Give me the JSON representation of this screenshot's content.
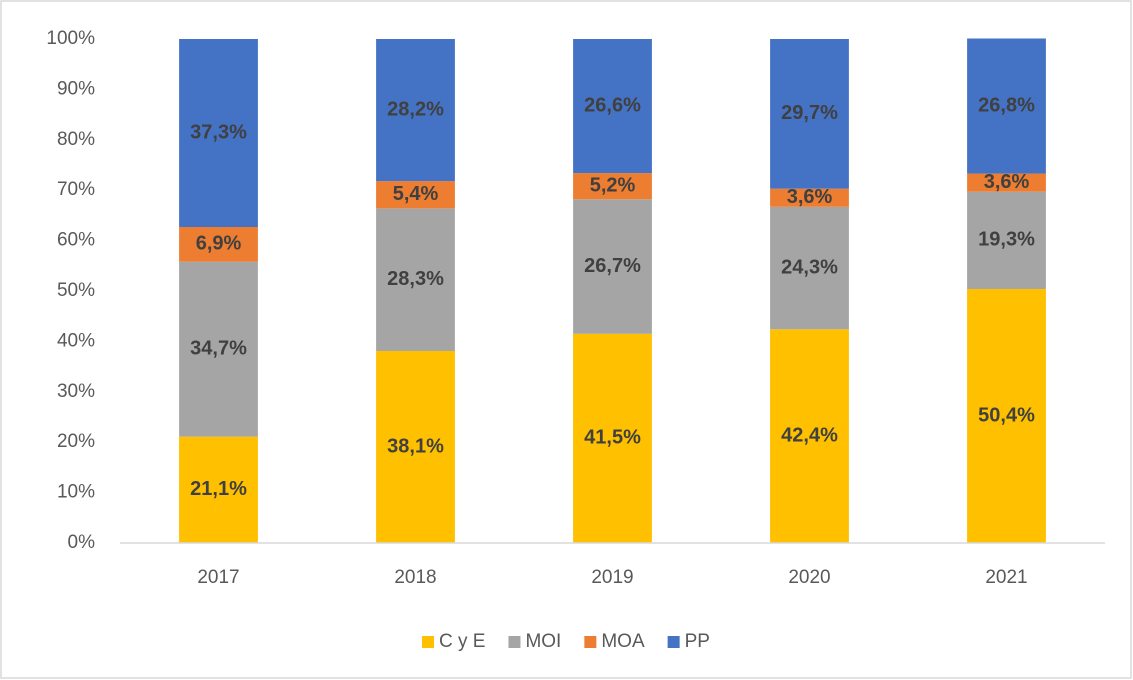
{
  "chart_data": {
    "type": "stacked_bar",
    "categories": [
      "2017",
      "2018",
      "2019",
      "2020",
      "2021"
    ],
    "series": [
      {
        "name": "C y E",
        "color": "#ffc000",
        "values": [
          21.1,
          38.1,
          41.5,
          42.4,
          50.4
        ],
        "value_labels": [
          "21,1%",
          "38,1%",
          "41,5%",
          "42,4%",
          "50,4%"
        ]
      },
      {
        "name": "MOI",
        "color": "#a5a5a5",
        "values": [
          34.7,
          28.3,
          26.7,
          24.3,
          19.3
        ],
        "value_labels": [
          "34,7%",
          "28,3%",
          "26,7%",
          "24,3%",
          "19,3%"
        ]
      },
      {
        "name": "MOA",
        "color": "#ed7d31",
        "values": [
          6.9,
          5.4,
          5.2,
          3.6,
          3.6
        ],
        "value_labels": [
          "6,9%",
          "5,4%",
          "5,2%",
          "3,6%",
          "3,6%"
        ]
      },
      {
        "name": "PP",
        "color": "#4472c4",
        "values": [
          37.3,
          28.2,
          26.6,
          29.7,
          26.8
        ],
        "value_labels": [
          "37,3%",
          "28,2%",
          "26,6%",
          "29,7%",
          "26,8%"
        ]
      }
    ],
    "ylim": [
      0,
      100
    ],
    "yticks": [
      {
        "value": 0,
        "label": "0%"
      },
      {
        "value": 10,
        "label": "10%"
      },
      {
        "value": 20,
        "label": "20%"
      },
      {
        "value": 30,
        "label": "30%"
      },
      {
        "value": 40,
        "label": "40%"
      },
      {
        "value": 50,
        "label": "50%"
      },
      {
        "value": 60,
        "label": "60%"
      },
      {
        "value": 70,
        "label": "70%"
      },
      {
        "value": 80,
        "label": "80%"
      },
      {
        "value": 90,
        "label": "90%"
      },
      {
        "value": 100,
        "label": "100%"
      }
    ],
    "grid": false,
    "legend": "bottom"
  }
}
